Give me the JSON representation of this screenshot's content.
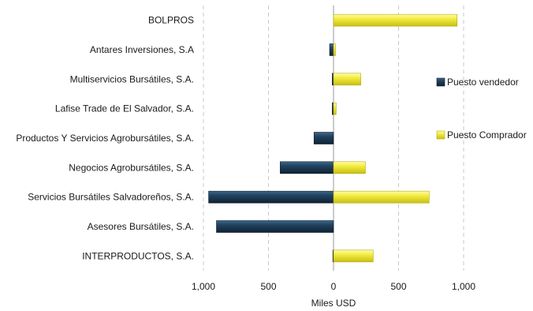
{
  "chart_data": {
    "type": "bar",
    "orientation": "horizontal",
    "style": "diverging",
    "categories": [
      "BOLPROS",
      "Antares Inversiones, S.A",
      "Multiservicios Bursátiles, S.A.",
      "Lafise Trade de El Salvador, S.A.",
      "Productos Y Servicios Agrobursátiles, S.A.",
      "Negocios Agrobursátiles, S.A.",
      "Servicios Bursátiles Salvadoreños, S.A.",
      "Asesores Bursátiles, S.A.",
      "INTERPRODUCTOS, S.A."
    ],
    "series": [
      {
        "name": "Puesto vendedor",
        "color": "#1f3b55",
        "direction": "left",
        "values": [
          0,
          30,
          10,
          10,
          150,
          410,
          960,
          900,
          5
        ]
      },
      {
        "name": "Puesto Comprador",
        "color": "#f2ec3a",
        "direction": "right",
        "values": [
          950,
          15,
          210,
          20,
          0,
          245,
          735,
          0,
          305
        ]
      }
    ],
    "xlabel": "Miles USD",
    "xlim": [
      -1000,
      1000
    ],
    "x_ticks": [
      -1000,
      -500,
      0,
      500,
      1000
    ],
    "x_tick_labels": [
      "1,000",
      "500",
      "0",
      "500",
      "1,000"
    ],
    "grid": "vertical dashed",
    "legend_position": "right"
  }
}
